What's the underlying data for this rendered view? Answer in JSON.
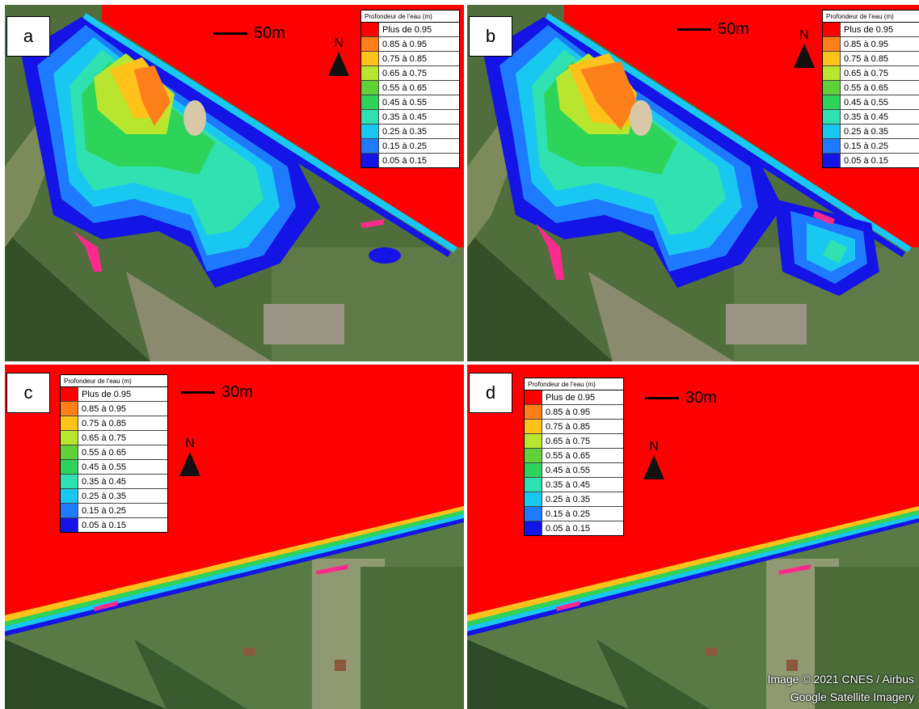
{
  "legend": {
    "title": "Profondeur de l'eau (m)",
    "items": [
      {
        "label": "Plus de 0.95",
        "color": "#ff0000"
      },
      {
        "label": "0.85  à 0.95",
        "color": "#ff7f1a"
      },
      {
        "label": "0.75  à 0.85",
        "color": "#ffc21a"
      },
      {
        "label": "0.65  à 0.75",
        "color": "#b8e62e"
      },
      {
        "label": "0.55  à 0.65",
        "color": "#5fd23a"
      },
      {
        "label": "0.45  à 0.55",
        "color": "#2ed45a"
      },
      {
        "label": "0.35  à 0.45",
        "color": "#2fe0b0"
      },
      {
        "label": "0.25  à 0.35",
        "color": "#19c8f0"
      },
      {
        "label": "0.15  à 0.25",
        "color": "#1e7bff"
      },
      {
        "label": "0.05  à 0.15",
        "color": "#1414e6"
      }
    ]
  },
  "panels": [
    {
      "label": "a",
      "scale": "50m",
      "north": "N"
    },
    {
      "label": "b",
      "scale": "50m",
      "north": "N"
    },
    {
      "label": "c",
      "scale": "30m",
      "north": "N"
    },
    {
      "label": "d",
      "scale": "30m",
      "north": "N"
    }
  ],
  "credit": {
    "line1": "Image © 2021 CNES / Airbus",
    "line2": "Google Satellite Imagery"
  }
}
